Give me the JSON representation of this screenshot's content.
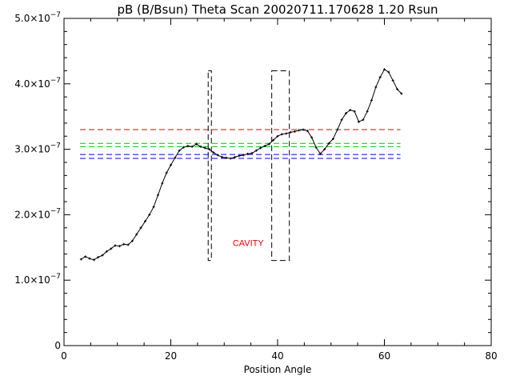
{
  "chart_data": {
    "type": "line",
    "title": "pB (B/Bsun) Theta Scan 20020711.170628 1.20 Rsun",
    "xlabel": "Position Angle",
    "ylabel": "",
    "xlim": [
      0,
      80
    ],
    "ylim": [
      0,
      5e-07
    ],
    "x_ticks": [
      {
        "value": 0,
        "label": "0"
      },
      {
        "value": 20,
        "label": "20"
      },
      {
        "value": 40,
        "label": "40"
      },
      {
        "value": 60,
        "label": "60"
      },
      {
        "value": 80,
        "label": "80"
      }
    ],
    "y_ticks": [
      {
        "value": 0,
        "mantissa": "0",
        "exponent": ""
      },
      {
        "value": 1e-07,
        "mantissa": "1.0×10",
        "exponent": "−7"
      },
      {
        "value": 2e-07,
        "mantissa": "2.0×10",
        "exponent": "−7"
      },
      {
        "value": 3e-07,
        "mantissa": "3.0×10",
        "exponent": "−7"
      },
      {
        "value": 4e-07,
        "mantissa": "4.0×10",
        "exponent": "−7"
      },
      {
        "value": 5e-07,
        "mantissa": "5.0×10",
        "exponent": "−7"
      }
    ],
    "grid": false,
    "series": [
      {
        "color": "#000000",
        "marker": "plus",
        "x": [
          3.2,
          4.0,
          4.8,
          5.6,
          6.4,
          7.2,
          8.0,
          8.8,
          9.6,
          10.4,
          11.2,
          12.0,
          12.8,
          13.6,
          14.4,
          15.2,
          16.0,
          16.8,
          17.6,
          18.4,
          19.2,
          20.0,
          20.8,
          21.6,
          22.4,
          23.2,
          24.0,
          24.8,
          25.6,
          26.4,
          27.2,
          28.0,
          28.8,
          29.6,
          30.4,
          31.2,
          32.0,
          32.8,
          33.6,
          34.4,
          35.2,
          36.0,
          36.8,
          37.6,
          38.4,
          39.2,
          40.0,
          40.8,
          41.6,
          42.4,
          43.2,
          44.0,
          44.8,
          45.6,
          46.4,
          47.2,
          48.0,
          48.8,
          49.6,
          50.4,
          51.2,
          52.0,
          52.8,
          53.6,
          54.4,
          55.2,
          56.0,
          56.8,
          57.6,
          58.4,
          59.2,
          60.0,
          60.8,
          61.6,
          62.4,
          63.2
        ],
        "y": [
          1.32e-07,
          1.36e-07,
          1.33e-07,
          1.31e-07,
          1.35e-07,
          1.38e-07,
          1.44e-07,
          1.48e-07,
          1.53e-07,
          1.52e-07,
          1.55e-07,
          1.54e-07,
          1.6e-07,
          1.7e-07,
          1.8e-07,
          1.9e-07,
          2e-07,
          2.12e-07,
          2.3e-07,
          2.48e-07,
          2.64e-07,
          2.76e-07,
          2.87e-07,
          2.98e-07,
          3.03e-07,
          3.05e-07,
          3.04e-07,
          3.08e-07,
          3.04e-07,
          3.02e-07,
          3e-07,
          2.95e-07,
          2.91e-07,
          2.88e-07,
          2.87e-07,
          2.86e-07,
          2.88e-07,
          2.9e-07,
          2.91e-07,
          2.93e-07,
          2.94e-07,
          2.98e-07,
          3.02e-07,
          3.05e-07,
          3.08e-07,
          3.14e-07,
          3.2e-07,
          3.23e-07,
          3.24e-07,
          3.26e-07,
          3.27e-07,
          3.29e-07,
          3.3e-07,
          3.28e-07,
          3.18e-07,
          3.03e-07,
          2.93e-07,
          3e-07,
          3.09e-07,
          3.16e-07,
          3.3e-07,
          3.45e-07,
          3.55e-07,
          3.6e-07,
          3.58e-07,
          3.42e-07,
          3.45e-07,
          3.58e-07,
          3.75e-07,
          3.95e-07,
          4.1e-07,
          4.22e-07,
          4.18e-07,
          4.05e-07,
          3.92e-07,
          3.85e-07
        ]
      }
    ],
    "reference_lines": [
      {
        "y": 3.3e-07,
        "color": "#e00000",
        "style": "dashed",
        "x_from": 3,
        "x_to": 63
      },
      {
        "y": 3.09e-07,
        "color": "#00c000",
        "style": "dashed",
        "x_from": 3,
        "x_to": 63
      },
      {
        "y": 3.04e-07,
        "color": "#00c000",
        "style": "dashed",
        "x_from": 3,
        "x_to": 63
      },
      {
        "y": 2.92e-07,
        "color": "#0000e0",
        "style": "dashed",
        "x_from": 3,
        "x_to": 63
      },
      {
        "y": 2.86e-07,
        "color": "#0000e0",
        "style": "dashed",
        "x_from": 3,
        "x_to": 63
      }
    ],
    "boxes": [
      {
        "x0": 27.0,
        "x1": 27.6,
        "y0": 1.3e-07,
        "y1": 4.2e-07,
        "color": "#000000",
        "style": "dashed"
      },
      {
        "x0": 38.9,
        "x1": 42.2,
        "y0": 1.3e-07,
        "y1": 4.2e-07,
        "color": "#000000",
        "style": "dashed"
      }
    ],
    "annotations": [
      {
        "text": "CAVITY",
        "x": 34.5,
        "y": 1.52e-07,
        "color": "#e00000"
      }
    ]
  }
}
